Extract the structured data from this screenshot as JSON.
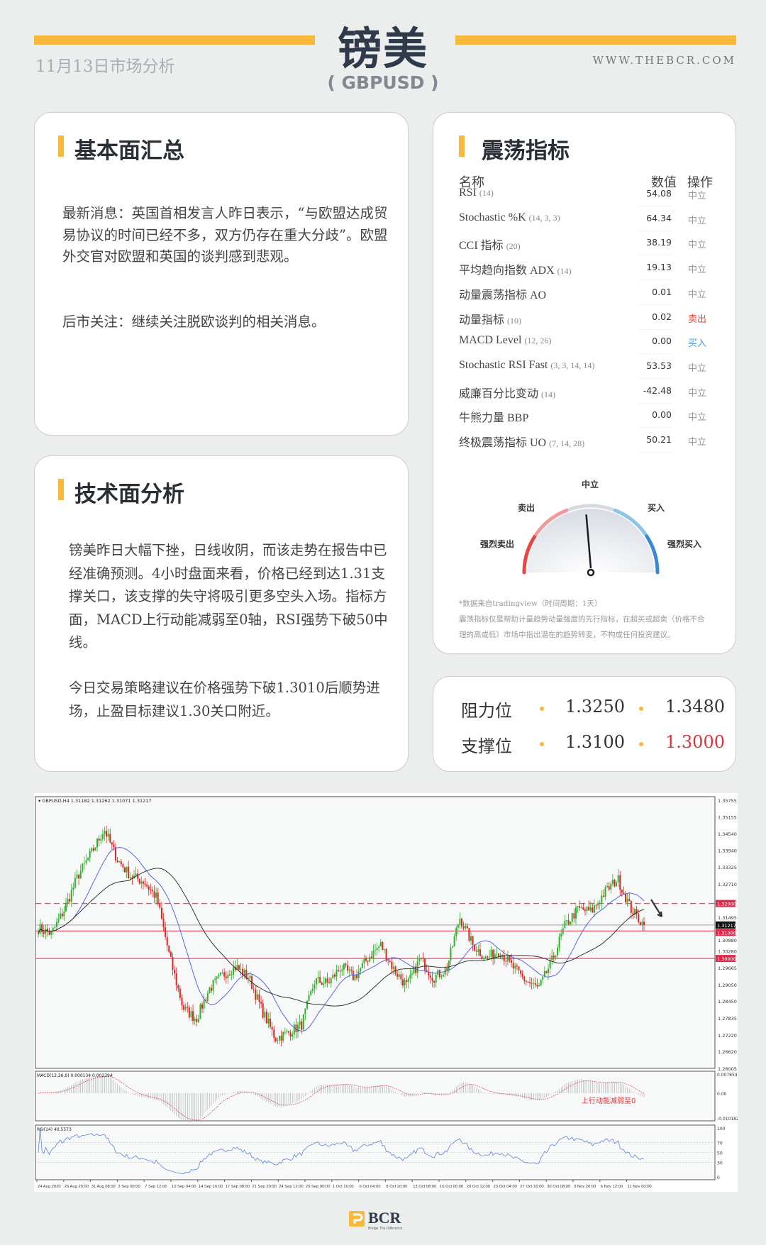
{
  "header": {
    "title": "镑美",
    "subtitle": "( GBPUSD )",
    "date": "11月13日市场分析",
    "site": "WWW.THEBCR.COM"
  },
  "fundamentals": {
    "title": "基本面汇总",
    "paragraphs": [
      "最新消息：英国首相发言人昨日表示，“与欧盟达成贸易协议的时间已经不多，双方仍存在重大分歧”。欧盟外交官对欧盟和英国的谈判感到悲观。",
      "后市关注：继续关注脱欧谈判的相关消息。"
    ]
  },
  "technical": {
    "title": "技术面分析",
    "paragraphs": [
      "镑美昨日大幅下挫，日线收阴，而该走势在报告中已经准确预测。4小时盘面来看，价格已经到达1.31支撑关口，该支撑的失守将吸引更多空头入场。指标方面，MACD上行动能减弱至0轴，RSI强势下破50中线。",
      "今日交易策略建议在价格强势下破1.3010后顺势进场，止盈目标建议1.30关口附近。"
    ]
  },
  "oscillators": {
    "title": "震荡指标",
    "headers": {
      "name": "名称",
      "value": "数值",
      "action": "操作"
    },
    "rows": [
      {
        "name": "RSI",
        "params": "(14)",
        "value": "54.08",
        "action": "中立"
      },
      {
        "name": "Stochastic %K",
        "params": "(14, 3, 3)",
        "value": "64.34",
        "action": "中立"
      },
      {
        "name": "CCI 指标",
        "params": "(20)",
        "value": "38.19",
        "action": "中立"
      },
      {
        "name": "平均趋向指数 ADX",
        "params": "(14)",
        "value": "19.13",
        "action": "中立"
      },
      {
        "name": "动量震荡指标 AO",
        "params": "",
        "value": "0.01",
        "action": "中立"
      },
      {
        "name": "动量指标",
        "params": "(10)",
        "value": "0.02",
        "action": "卖出"
      },
      {
        "name": "MACD Level",
        "params": "(12, 26)",
        "value": "0.00",
        "action": "买入"
      },
      {
        "name": "Stochastic RSI Fast",
        "params": "(3, 3, 14, 14)",
        "value": "53.53",
        "action": "中立"
      },
      {
        "name": "威廉百分比变动",
        "params": "(14)",
        "value": "-42.48",
        "action": "中立"
      },
      {
        "name": "牛熊力量 BBP",
        "params": "",
        "value": "0.00",
        "action": "中立"
      },
      {
        "name": "终极震荡指标 UO",
        "params": "(7, 14, 28)",
        "value": "50.21",
        "action": "中立"
      }
    ],
    "action_colors": {
      "中立": "#999999",
      "卖出": "#e8473f",
      "买入": "#4a9ee0"
    },
    "gauge": {
      "labels": {
        "strong_sell": "强烈卖出",
        "sell": "卖出",
        "neutral": "中立",
        "buy": "买入",
        "strong_buy": "强烈买入"
      },
      "reading": "中立",
      "needle_level": -0.05,
      "colors": {
        "strong_sell": "#e84545",
        "sell": "#f09a9a",
        "neutral": "#d6d9e0",
        "buy": "#8ec3ea",
        "strong_buy": "#3b8ad0"
      }
    },
    "notes": [
      "*数据来自tradingview（时间周期：1天）",
      "震荡指标仅是帮助计量趋势动量强度的先行指标，在超买或超卖（价格不合",
      "理的高或低）市场中指出潜在的趋势转变，不构成任何投资建议。"
    ]
  },
  "levels": {
    "resistance_label": "阻力位",
    "support_label": "支撑位",
    "resistance": [
      "1.3250",
      "1.3480"
    ],
    "support": [
      "1.3100",
      "1.3000"
    ],
    "highlight_color": "#d9343f"
  },
  "chart": {
    "header": "GBPUSD,H4  1.31182 1.31262 1.31071 1.31217",
    "y_ticks": [
      "1.35755",
      "1.35155",
      "1.34540",
      "1.33940",
      "1.33325",
      "1.32710",
      "1.31495",
      "1.30880",
      "1.30280",
      "1.29665",
      "1.29050",
      "1.28450",
      "1.27835",
      "1.27220",
      "1.26620",
      "1.26005"
    ],
    "ylim": [
      1.26005,
      1.35755
    ],
    "levels": [
      {
        "price": 1.32,
        "label": "1.32000",
        "style": "dashed"
      },
      {
        "price": 1.31,
        "label": "1.31000",
        "style": "solid"
      },
      {
        "price": 1.3,
        "label": "1.30000",
        "style": "solid"
      }
    ],
    "current": {
      "price": 1.31217,
      "label": "1.31217"
    },
    "x_ticks": [
      "24 Aug 2020",
      "26 Aug 20:00",
      "31 Aug 08:00",
      "3 Sep 00:00",
      "7 Sep 12:00",
      "10 Sep 04:00",
      "14 Sep 16:00",
      "17 Sep 08:00",
      "21 Sep 20:00",
      "24 Sep 12:00",
      "29 Sep 00:00",
      "1 Oct 16:00",
      "6 Oct 04:00",
      "8 Oct 20:00",
      "13 Oct 08:00",
      "16 Oct 00:00",
      "20 Oct 12:00",
      "23 Oct 04:00",
      "27 Oct 16:00",
      "30 Oct 08:00",
      "3 Nov 20:00",
      "6 Nov 12:00",
      "11 Nov 00:00"
    ],
    "price_path": [
      1.311,
      1.309,
      1.318,
      1.33,
      1.338,
      1.347,
      1.336,
      1.33,
      1.328,
      1.322,
      1.3,
      1.282,
      1.278,
      1.289,
      1.294,
      1.297,
      1.293,
      1.281,
      1.271,
      1.273,
      1.276,
      1.292,
      1.291,
      1.297,
      1.293,
      1.3,
      1.305,
      1.296,
      1.29,
      1.3,
      1.293,
      1.296,
      1.315,
      1.305,
      1.3,
      1.303,
      1.297,
      1.292,
      1.289,
      1.299,
      1.312,
      1.318,
      1.317,
      1.324,
      1.329,
      1.318,
      1.312
    ],
    "macd_label": "MACD(12,26,9) 0.000134 0.002394",
    "macd_ticks": [
      "0.007854",
      "0.00",
      "-0.010182"
    ],
    "rsi_label": "RSI(14) 40.5573",
    "rsi_ticks": [
      "100",
      "70",
      "50",
      "30",
      "0"
    ],
    "annotation": "上行动能减弱至0",
    "colors": {
      "up": "#2bb52b",
      "down": "#e02424",
      "ma_fast": "#4a5bd8",
      "ma_slow": "#222222",
      "level": "#e8506a",
      "macd_signal": "#e0303a",
      "rsi": "#5b86d6"
    }
  },
  "logo": {
    "text": "BCR",
    "tagline": "Bridge The Difference"
  }
}
